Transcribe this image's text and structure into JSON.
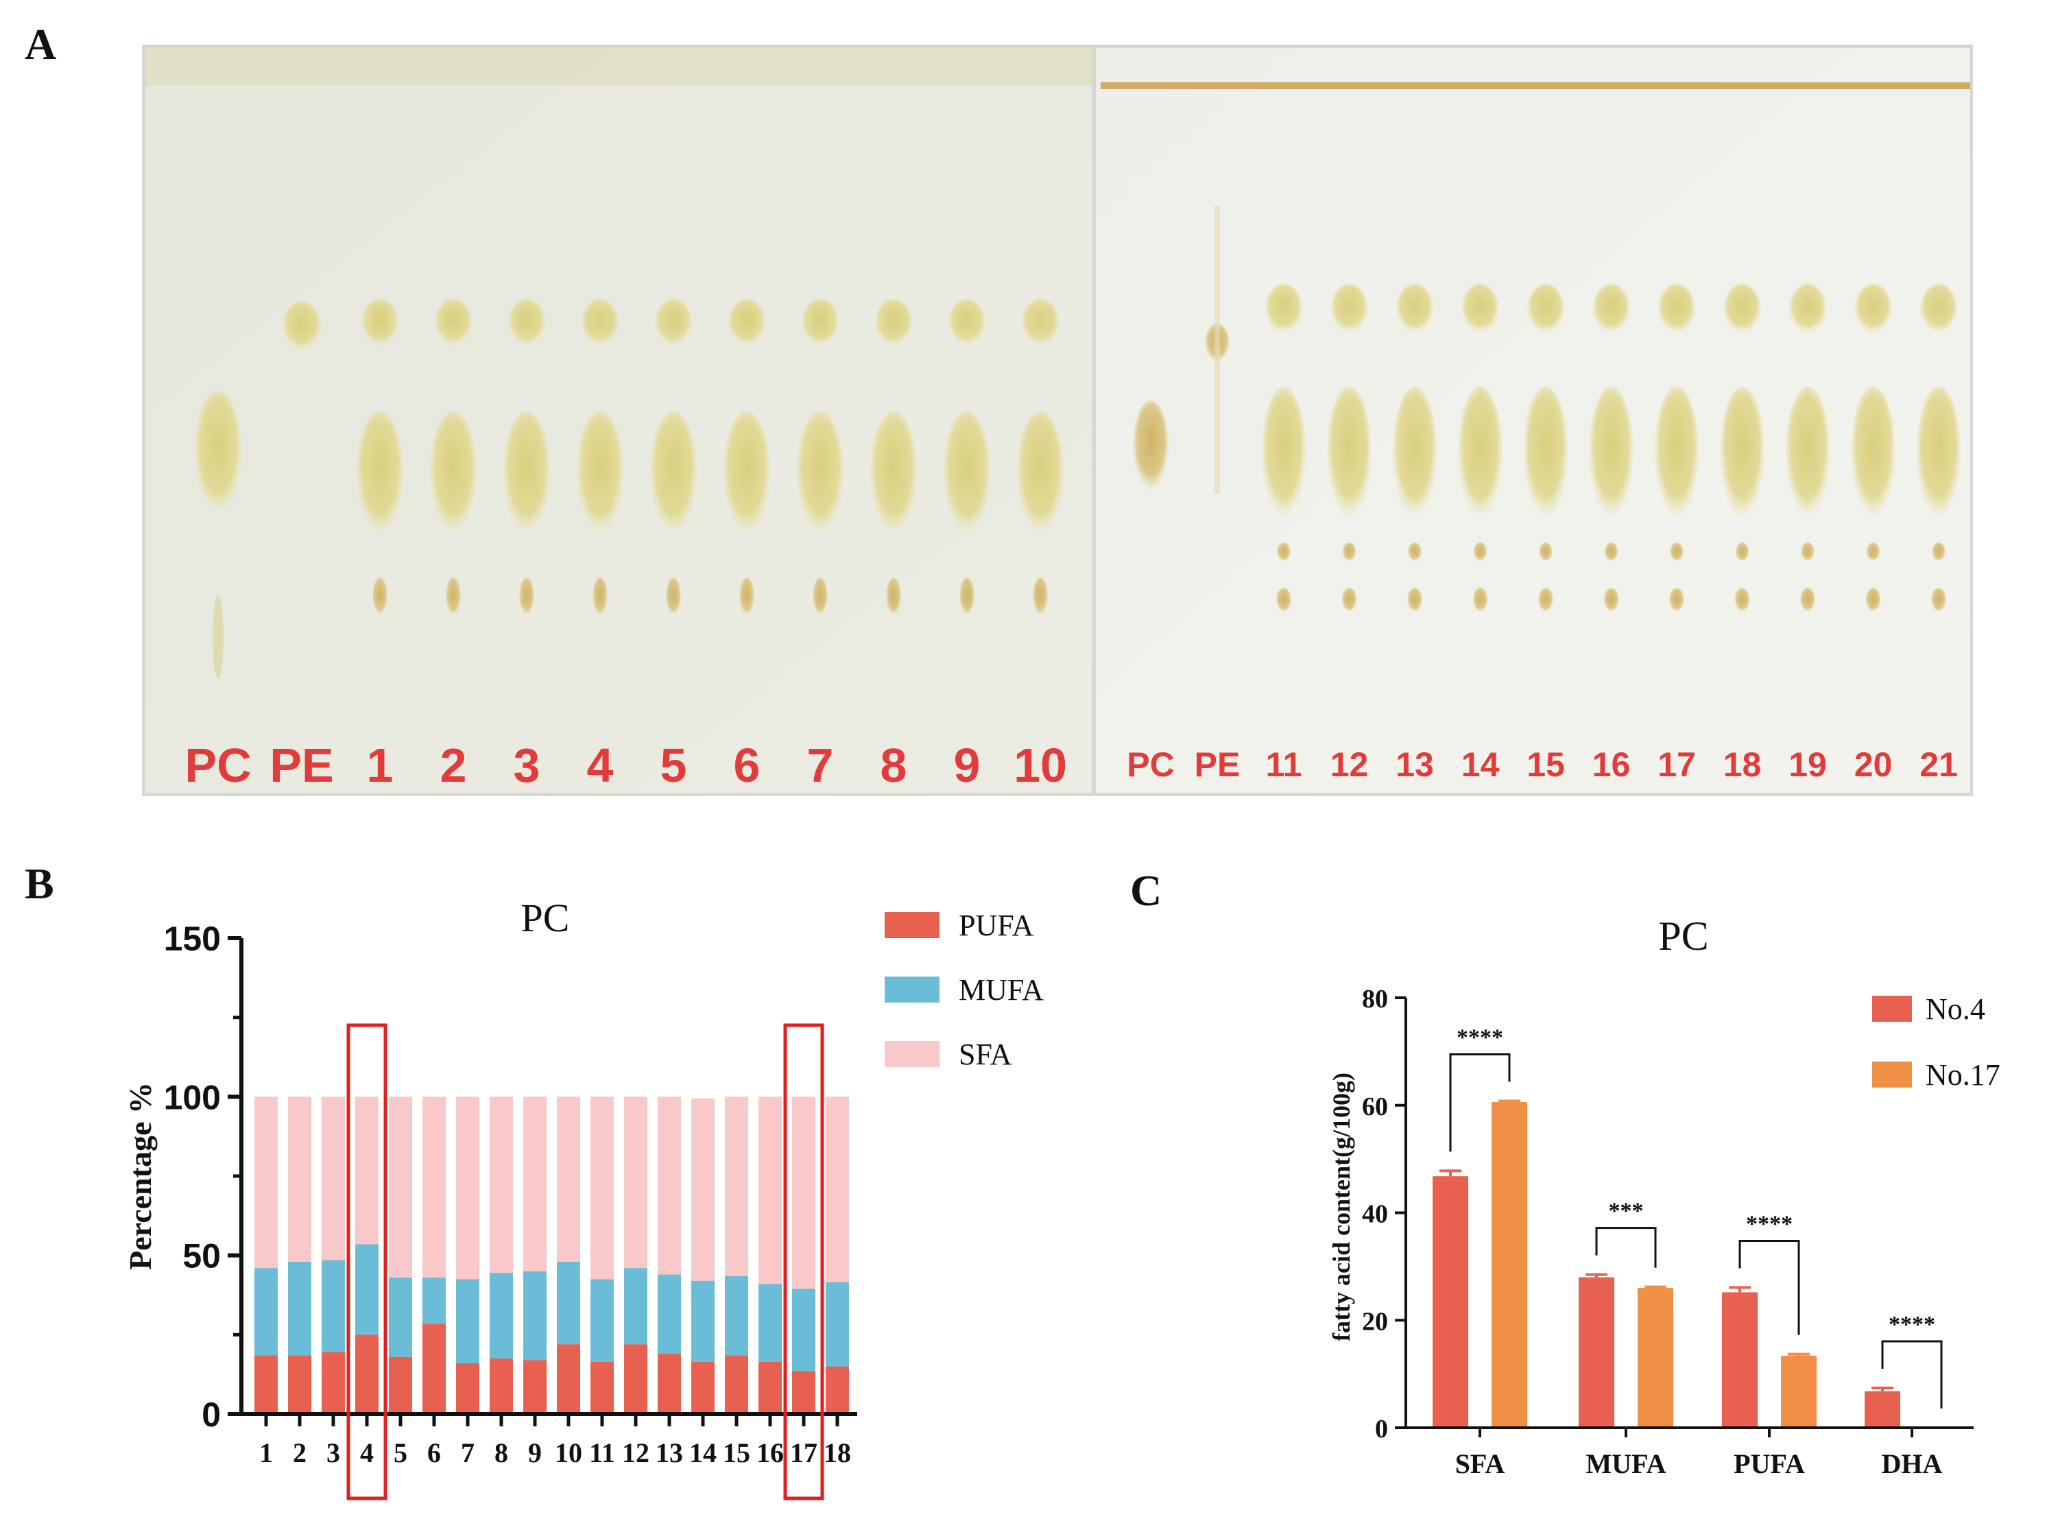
{
  "panels": {
    "a": "A",
    "b": "B",
    "c": "C"
  },
  "plate_left_lanes": [
    "PC",
    "PE",
    "1",
    "2",
    "3",
    "4",
    "5",
    "6",
    "7",
    "8",
    "9",
    "10"
  ],
  "plate_right_lanes": [
    "PC",
    "PE",
    "11",
    "12",
    "13",
    "14",
    "15",
    "16",
    "17",
    "18",
    "19",
    "20",
    "21"
  ],
  "colors": {
    "pufa": "#e8604f",
    "mufa": "#6bbcd6",
    "sfa": "#f9c9c9",
    "no4": "#e8604f",
    "no17": "#ef9046",
    "highlight": "#e02020",
    "lane_label": "#e23b3b"
  },
  "chart_data": [
    {
      "type": "bar",
      "stacked": true,
      "title": "PC",
      "ylabel": "Percentage %",
      "xlabel": "",
      "ylim": [
        0,
        150
      ],
      "yticks": [
        "0",
        "50",
        "100",
        "150"
      ],
      "categories": [
        "1",
        "2",
        "3",
        "4",
        "5",
        "6",
        "7",
        "8",
        "9",
        "10",
        "11",
        "12",
        "13",
        "14",
        "15",
        "16",
        "17",
        "18"
      ],
      "highlighted": [
        "4",
        "17"
      ],
      "legend_position": "top-right",
      "series": [
        {
          "name": "PUFA",
          "values": [
            18.5,
            18.5,
            19.5,
            25,
            18,
            28.5,
            16,
            17.5,
            17,
            22,
            16.5,
            22,
            19,
            16.5,
            18.5,
            16.5,
            13.5,
            15
          ]
        },
        {
          "name": "MUFA",
          "values": [
            27.5,
            29.5,
            29,
            28.5,
            25,
            14.5,
            26.5,
            27,
            28,
            26,
            26,
            24,
            25,
            25.5,
            25,
            24.5,
            26,
            26.5
          ]
        },
        {
          "name": "SFA",
          "values": [
            54,
            52,
            51.5,
            46.5,
            57,
            57,
            57.5,
            55.5,
            55,
            52,
            57.5,
            54,
            56,
            57.5,
            56.5,
            59,
            60.5,
            58.5
          ]
        }
      ]
    },
    {
      "type": "bar",
      "title": "PC",
      "ylabel": "fatty acid content(g/100g)",
      "xlabel": "",
      "ylim": [
        0,
        80
      ],
      "yticks": [
        "0",
        "20",
        "40",
        "60",
        "80"
      ],
      "categories": [
        "SFA",
        "MUFA",
        "PUFA",
        "DHA"
      ],
      "legend_position": "top-right",
      "series": [
        {
          "name": "No.4",
          "values": [
            46.8,
            28.0,
            25.2,
            6.8
          ],
          "errors": [
            1.0,
            0.5,
            0.9,
            0.6
          ]
        },
        {
          "name": "No.17",
          "values": [
            60.6,
            26.0,
            13.4,
            0.0
          ],
          "errors": [
            0.2,
            0.2,
            0.3,
            0.0
          ]
        }
      ],
      "significance": [
        "****",
        "***",
        "****",
        "****"
      ]
    }
  ]
}
